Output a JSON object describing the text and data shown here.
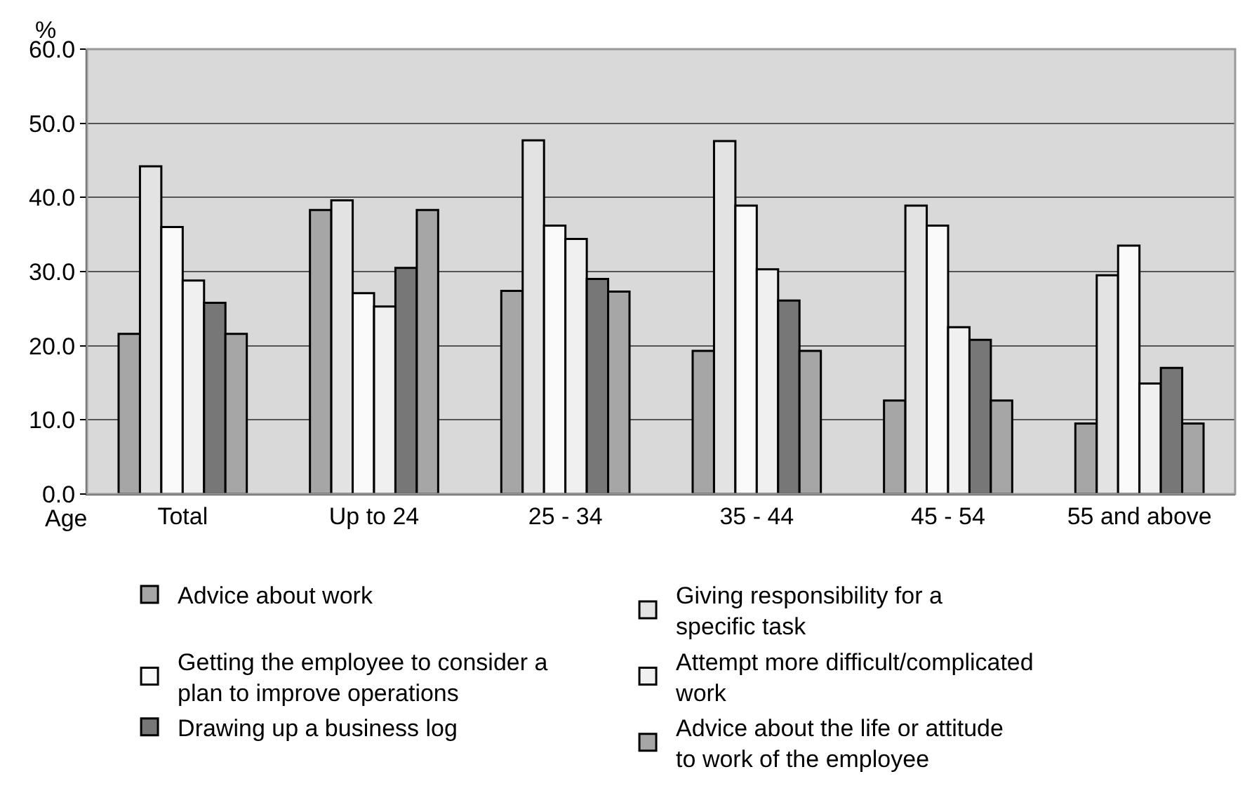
{
  "chart_data": {
    "type": "bar",
    "xlabel": "Age",
    "ylabel": "%",
    "categories": [
      "Total",
      "Up to 24",
      "25 - 34",
      "35 - 44",
      "45 - 54",
      "55 and above"
    ],
    "series": [
      {
        "name": "Advice about work",
        "color": "#a6a6a6",
        "values": [
          21.6,
          38.3,
          27.4,
          19.3,
          12.6,
          9.5
        ]
      },
      {
        "name": "Giving responsibility for a specific task",
        "color": "#e3e3e3",
        "values": [
          44.2,
          39.6,
          47.7,
          47.6,
          38.9,
          29.5
        ]
      },
      {
        "name": "Getting the employee to consider a plan to improve operations",
        "color": "#fafafa",
        "values": [
          36.0,
          27.1,
          36.2,
          38.9,
          36.2,
          33.5
        ]
      },
      {
        "name": "Attempt more difficult/complicated work",
        "color": "#f0f0f0",
        "values": [
          28.8,
          25.3,
          34.4,
          30.3,
          22.5,
          14.9
        ]
      },
      {
        "name": "Drawing up a business log",
        "color": "#777777",
        "values": [
          25.8,
          30.5,
          29.0,
          26.1,
          20.8,
          17.0
        ]
      },
      {
        "name": "Advice about the life or attitude to work of the employee",
        "color": "#a6a6a6",
        "values": [
          21.6,
          38.3,
          27.3,
          19.3,
          12.6,
          9.5
        ]
      }
    ],
    "ylim": [
      0,
      60
    ],
    "yticks": [
      {
        "value": 0,
        "label": "0.0"
      },
      {
        "value": 10,
        "label": "10.0"
      },
      {
        "value": 20,
        "label": "20.0"
      },
      {
        "value": 30,
        "label": "30.0"
      },
      {
        "value": 40,
        "label": "40.0"
      },
      {
        "value": 50,
        "label": "50.0"
      },
      {
        "value": 60,
        "label": "60.0"
      }
    ],
    "grid": "y",
    "legend": "bottom"
  }
}
